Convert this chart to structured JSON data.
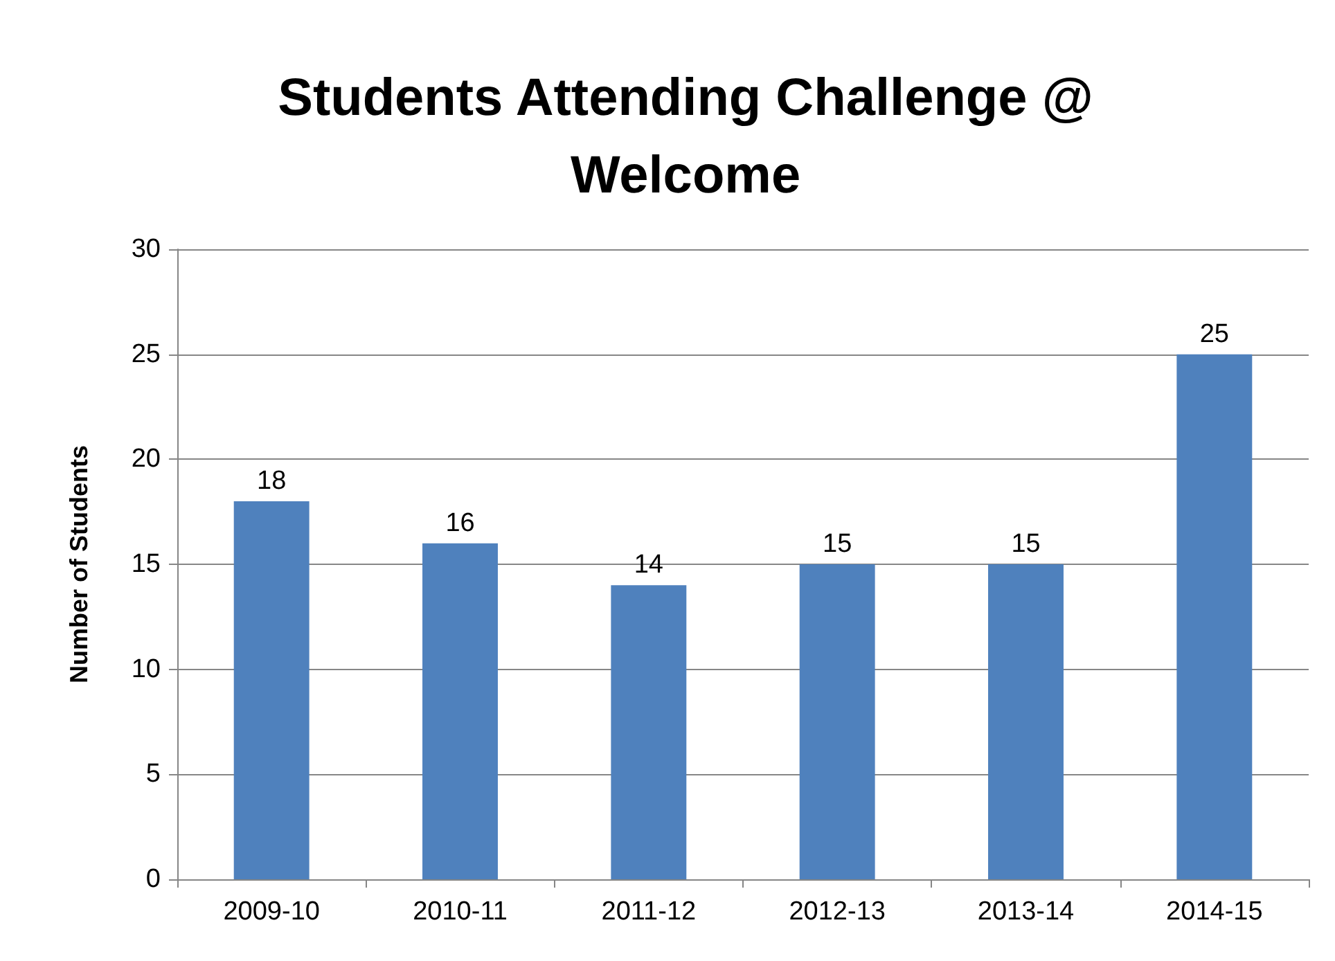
{
  "chart_data": {
    "type": "bar",
    "title": "Students Attending Challenge @\nWelcome",
    "ylabel": "Number of Students",
    "categories": [
      "2009-10",
      "2010-11",
      "2011-12",
      "2012-13",
      "2013-14",
      "2014-15"
    ],
    "values": [
      18,
      16,
      14,
      15,
      15,
      25
    ],
    "color": "#4f81bd",
    "ylim": [
      0,
      30
    ],
    "yticks": [
      0,
      5,
      10,
      15,
      20,
      25,
      30
    ],
    "grid": "y",
    "data_labels": true
  }
}
